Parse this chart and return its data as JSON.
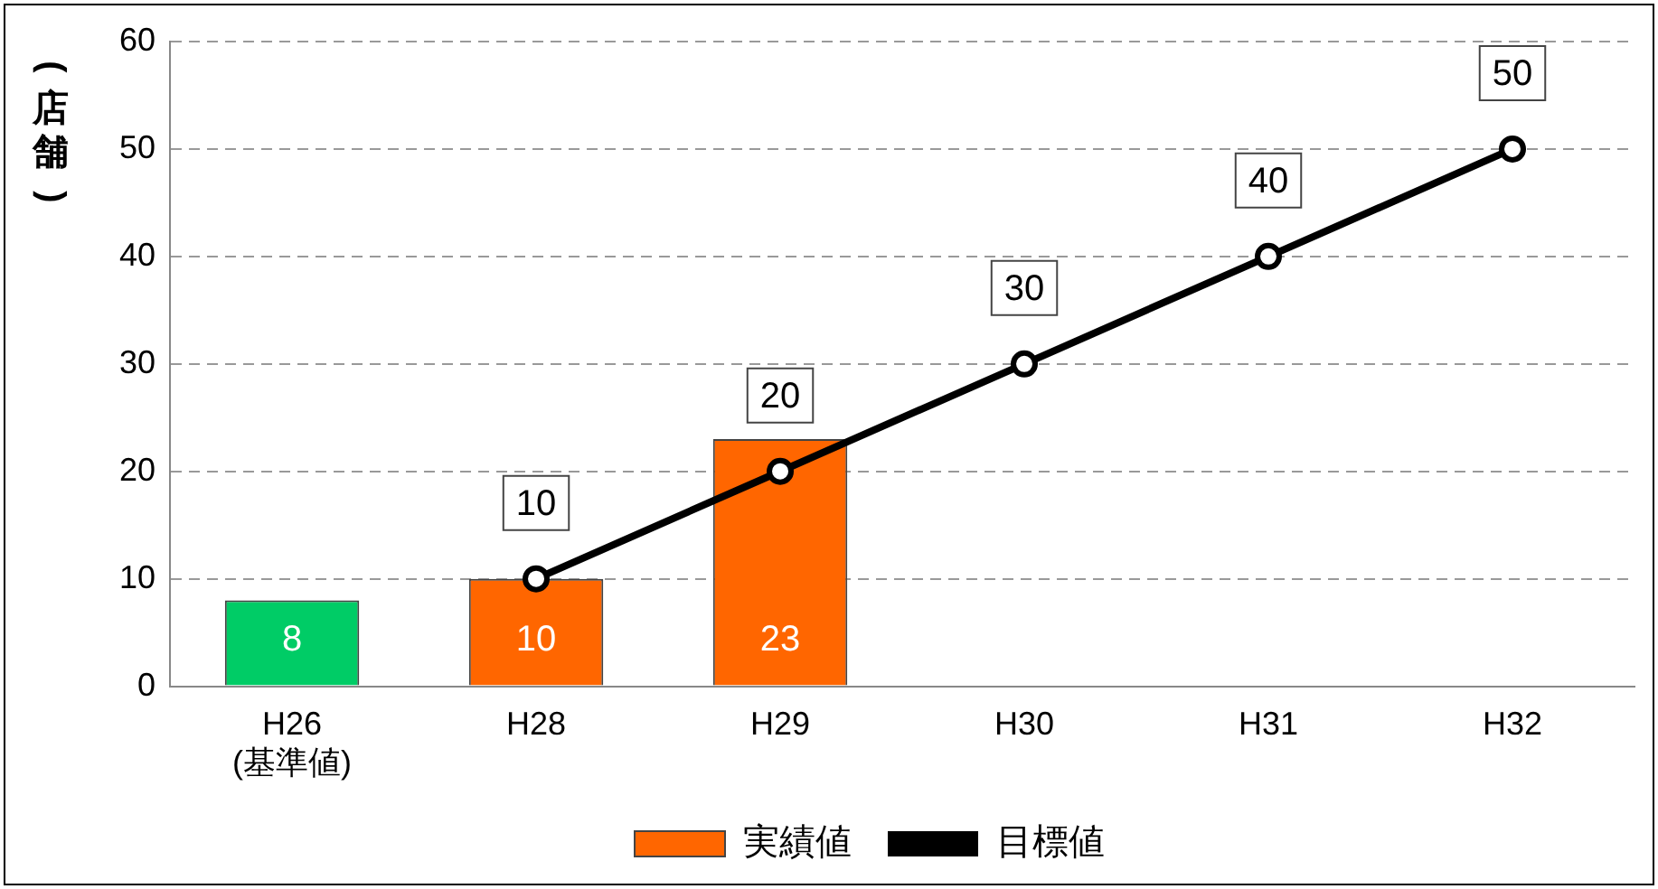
{
  "chart_data": {
    "type": "bar",
    "ylabel": "(店舗)",
    "categories": [
      "H26\n(基準値)",
      "H28",
      "H29",
      "H30",
      "H31",
      "H32"
    ],
    "series": [
      {
        "name": "実績値",
        "color": "#ff6600",
        "colors": [
          "#00cc66",
          "#ff6600",
          "#ff6600",
          null,
          null,
          null
        ],
        "values": [
          8,
          10,
          23,
          null,
          null,
          null
        ]
      },
      {
        "name": "目標値",
        "type": "line",
        "color": "#000000",
        "values": [
          null,
          10,
          20,
          30,
          40,
          50
        ]
      }
    ],
    "ylim": [
      0,
      60
    ],
    "yticks": [
      0,
      10,
      20,
      30,
      40,
      50,
      60
    ],
    "grid": "y",
    "legend": "bottom",
    "marker": "circle",
    "line_style": "solid",
    "data_labels": true
  }
}
